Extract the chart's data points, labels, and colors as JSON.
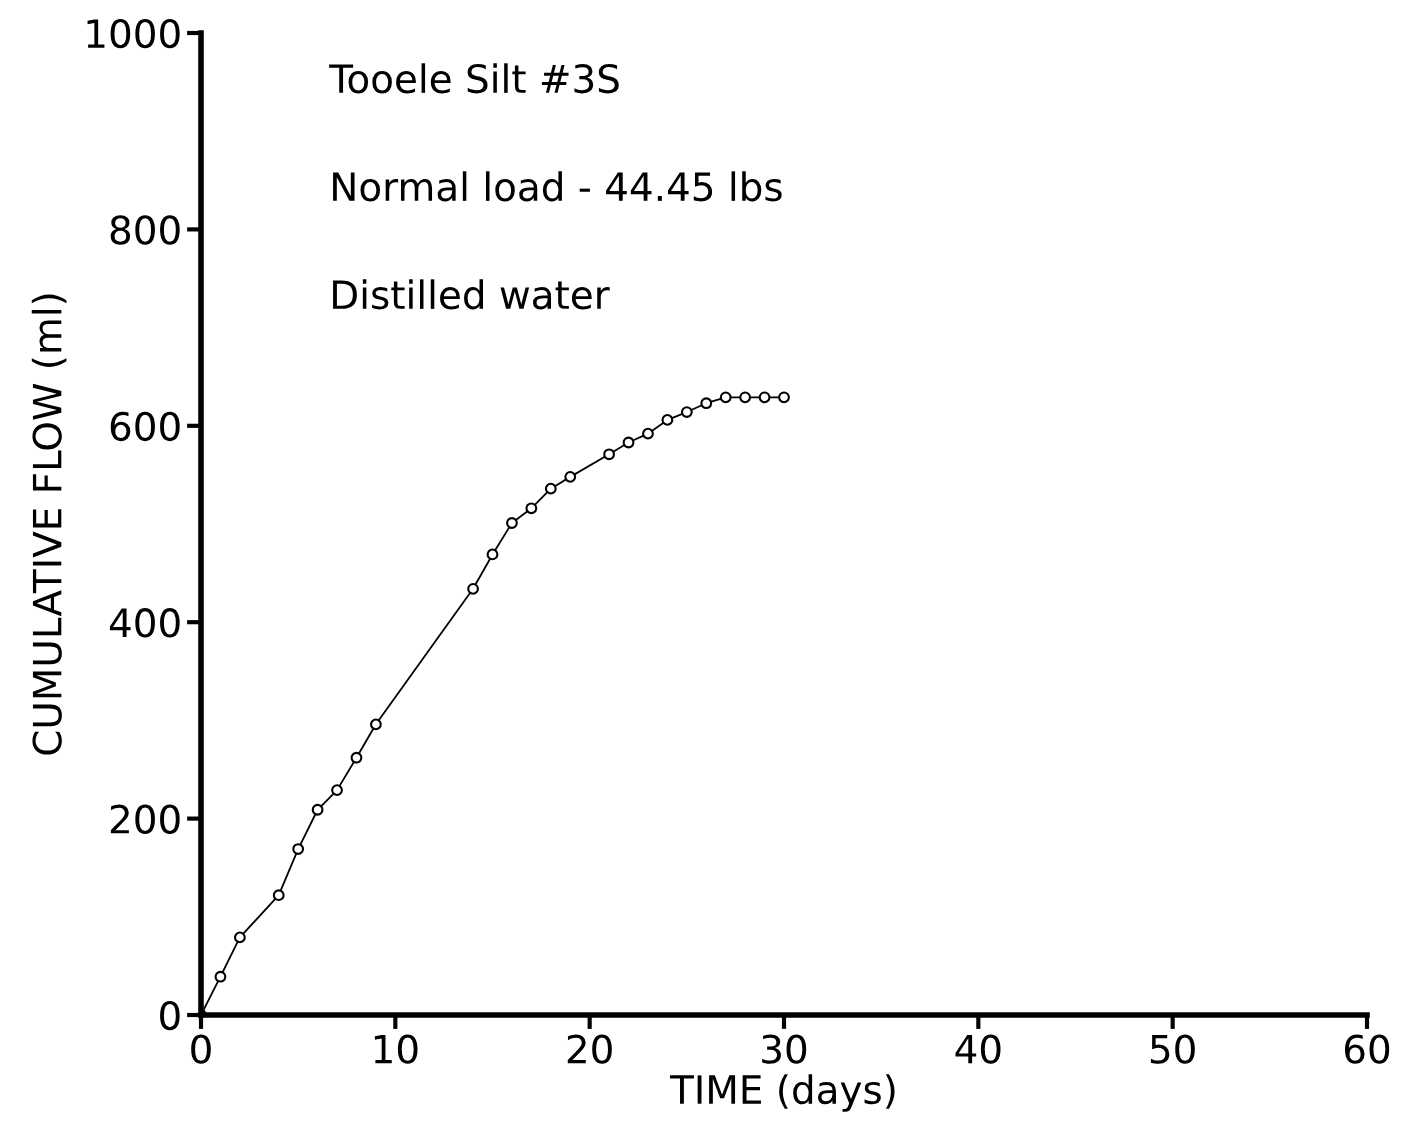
{
  "chart_data": {
    "type": "line",
    "xlabel": "TIME (days)",
    "ylabel": "CUMULATIVE FLOW (ml)",
    "annotations": [
      "Tooele Silt #3S",
      "Normal load - 44.45 lbs",
      "Distilled water"
    ],
    "x": [
      0,
      1,
      2,
      4,
      5,
      6,
      7,
      8,
      9,
      14,
      15,
      16,
      17,
      18,
      19,
      21,
      22,
      23,
      24,
      25,
      26,
      27,
      28,
      29,
      30
    ],
    "series": [
      {
        "color": "#000000",
        "values": [
          0,
          39,
          79,
          122,
          169,
          209,
          229,
          262,
          296,
          434,
          469,
          501,
          516,
          536,
          548,
          571,
          583,
          592,
          606,
          614,
          623,
          629,
          629,
          629,
          629
        ]
      }
    ],
    "xlim": [
      0,
      60
    ],
    "xticks": [
      0,
      10,
      20,
      30,
      40,
      50,
      60
    ],
    "ylim": [
      0,
      1000
    ],
    "yticks": [
      0,
      200,
      400,
      600,
      800,
      1000
    ],
    "grid": false,
    "legend": false,
    "marker": "circle",
    "line_style": "solid"
  }
}
